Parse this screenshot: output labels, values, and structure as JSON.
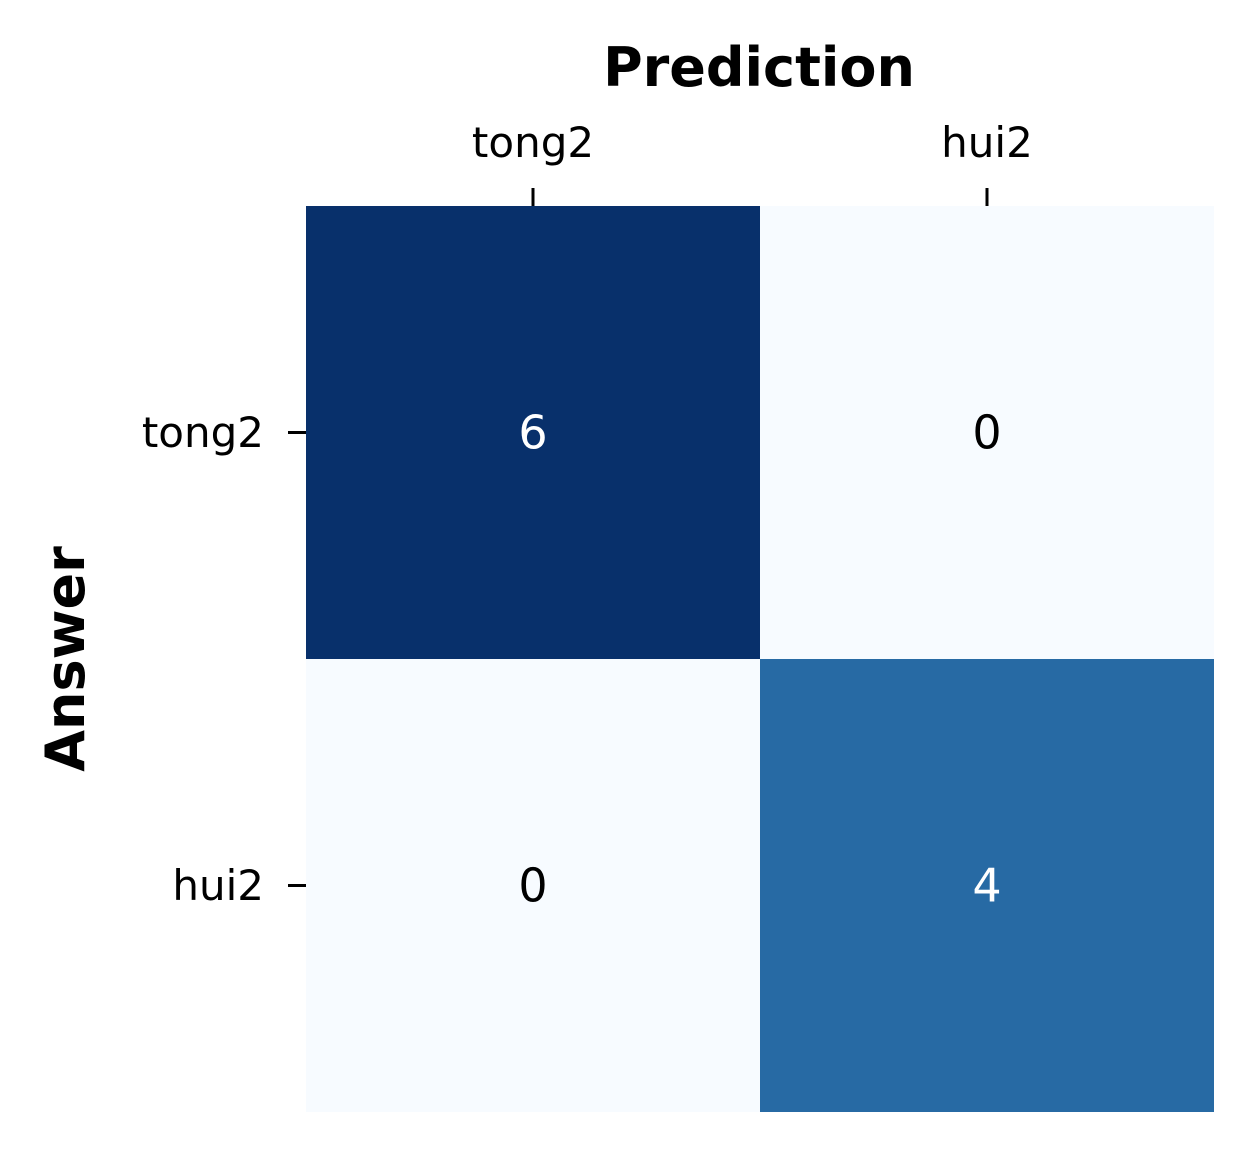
{
  "chart_data": {
    "type": "heatmap",
    "title": "",
    "xlabel": "Prediction",
    "ylabel": "Answer",
    "x_categories": [
      "tong2",
      "hui2"
    ],
    "y_categories": [
      "tong2",
      "hui2"
    ],
    "values": [
      [
        6,
        0
      ],
      [
        0,
        4
      ]
    ],
    "colormap": "Blues",
    "vmin": 0,
    "vmax": 6,
    "x_axis_position": "top",
    "colorbar": false,
    "annotations": true,
    "colors": {
      "low": "#f7fbff",
      "mid": "#3787c0",
      "high": "#08306b",
      "text_dark": "#000000",
      "text_light": "#ffffff"
    }
  }
}
